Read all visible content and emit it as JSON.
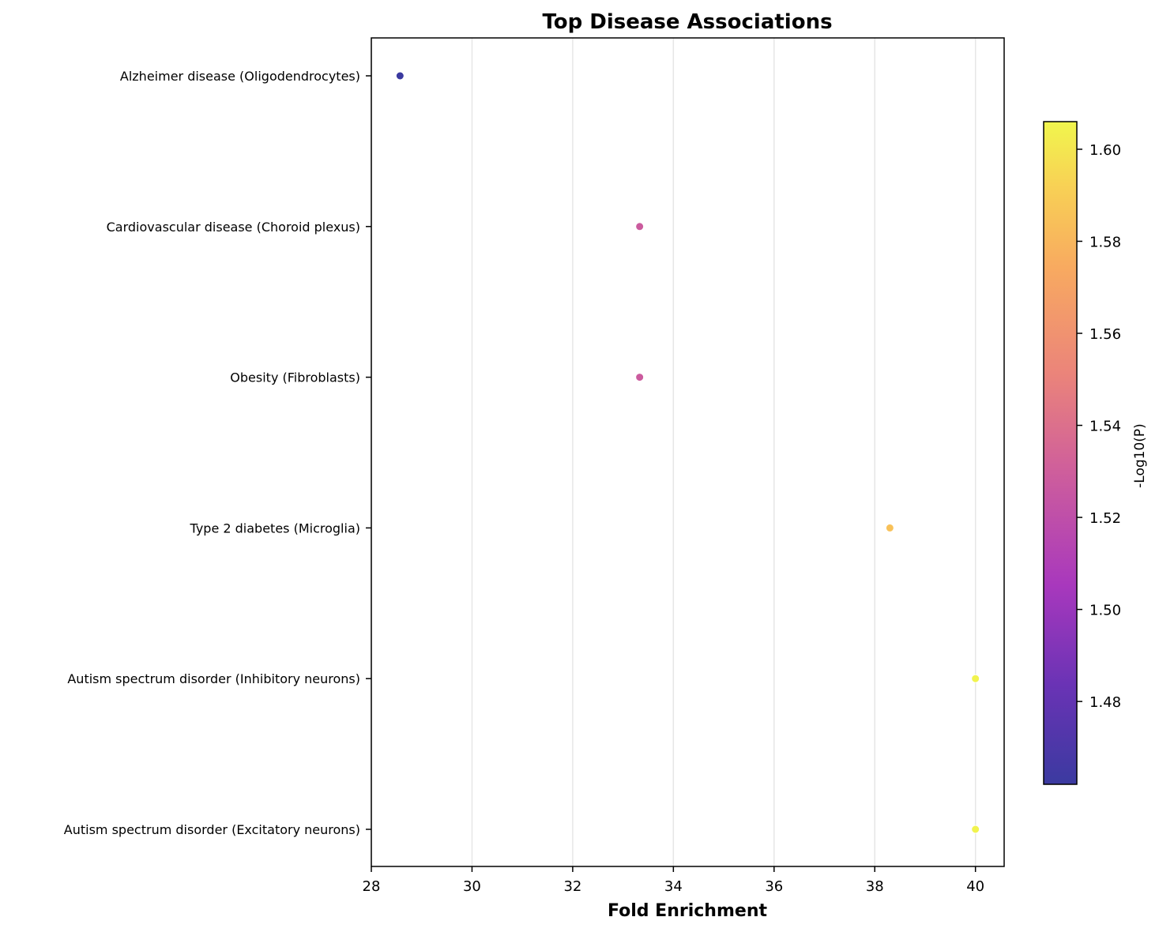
{
  "chart_data": {
    "type": "scatter",
    "title": "Top Disease Associations",
    "xlabel": "Fold Enrichment",
    "ylabel": "",
    "xlim": [
      28,
      40.57
    ],
    "xticks": [
      28,
      30,
      32,
      34,
      36,
      38,
      40
    ],
    "grid": "vertical",
    "categories": [
      "Alzheimer disease (Oligodendrocytes)",
      "Cardiovascular disease (Choroid plexus)",
      "Obesity (Fibroblasts)",
      "Type 2 diabetes (Microglia)",
      "Autism spectrum disorder (Inhibitory neurons)",
      "Autism spectrum disorder (Excitatory neurons)"
    ],
    "points": [
      {
        "category": "Alzheimer disease (Oligodendrocytes)",
        "x": 28.57,
        "neg_log10_p": 1.462
      },
      {
        "category": "Cardiovascular disease (Choroid plexus)",
        "x": 33.33,
        "neg_log10_p": 1.528
      },
      {
        "category": "Obesity (Fibroblasts)",
        "x": 33.33,
        "neg_log10_p": 1.528
      },
      {
        "category": "Type 2 diabetes (Microglia)",
        "x": 38.3,
        "neg_log10_p": 1.585
      },
      {
        "category": "Autism spectrum disorder (Inhibitory neurons)",
        "x": 40.0,
        "neg_log10_p": 1.605
      },
      {
        "category": "Autism spectrum disorder (Excitatory neurons)",
        "x": 40.0,
        "neg_log10_p": 1.605
      }
    ],
    "colorbar": {
      "label": "-Log10(P)",
      "range": [
        1.462,
        1.606
      ],
      "ticks": [
        1.48,
        1.5,
        1.52,
        1.54,
        1.56,
        1.58,
        1.6
      ],
      "tick_labels": [
        "1.48",
        "1.50",
        "1.52",
        "1.54",
        "1.56",
        "1.58",
        "1.60"
      ],
      "colormap": "plasma",
      "placement": "right"
    }
  }
}
